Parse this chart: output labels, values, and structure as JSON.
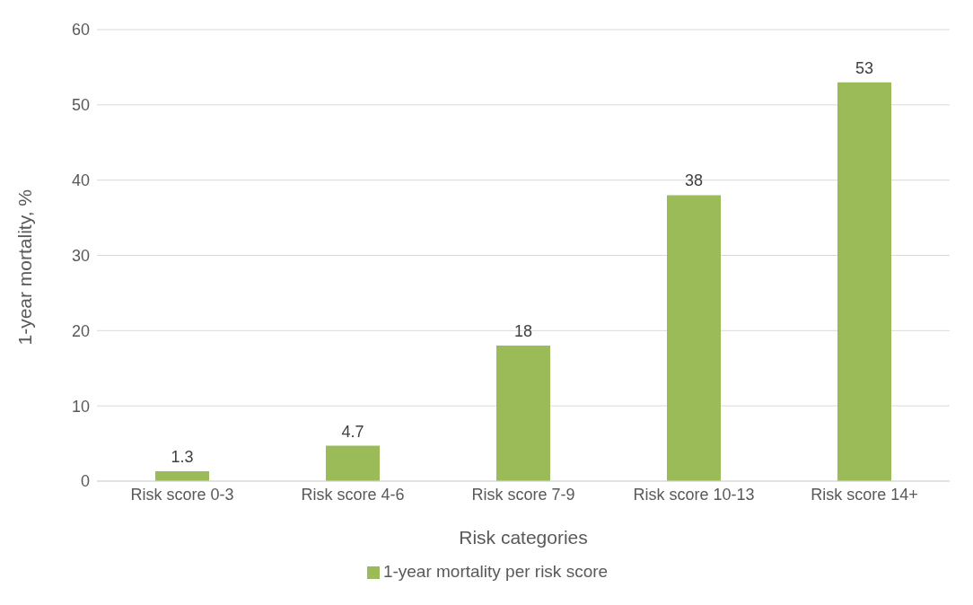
{
  "chart_data": {
    "type": "bar",
    "xlabel": "Risk categories",
    "ylabel": "1-year mortality, %",
    "categories": [
      "Risk score 0-3",
      "Risk score 4-6",
      "Risk score 7-9",
      "Risk score 10-13",
      "Risk score 14+"
    ],
    "series": [
      {
        "name": "1-year mortality per risk score",
        "color": "#9bbb59",
        "values": [
          1.3,
          4.7,
          18,
          38,
          53
        ]
      }
    ],
    "ylim": [
      0,
      60
    ],
    "yticks": [
      0,
      10,
      20,
      30,
      40,
      50,
      60
    ],
    "grid": "y",
    "data_labels": true,
    "legend": "bottom"
  }
}
